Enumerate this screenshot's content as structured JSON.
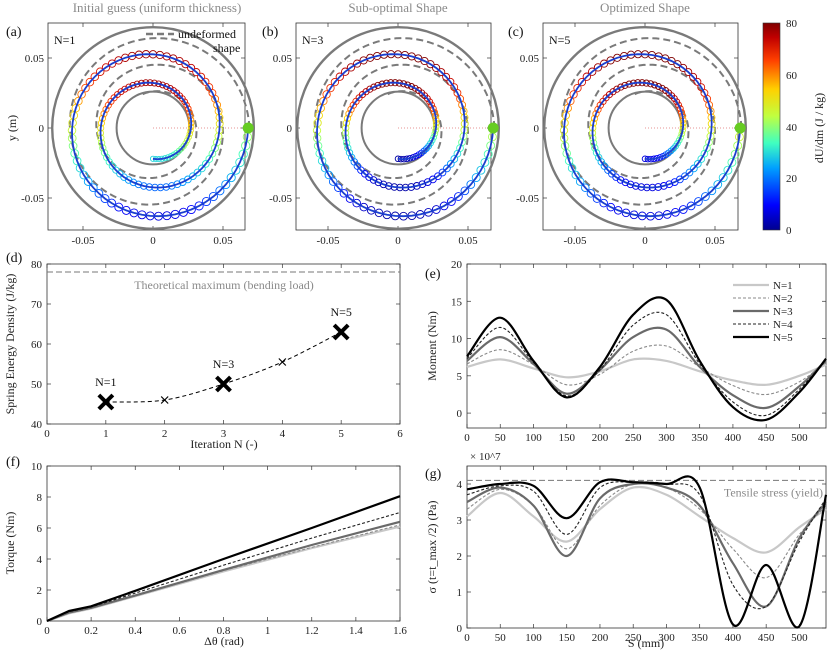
{
  "panel_labels": {
    "a": "(a)",
    "b": "(b)",
    "c": "(c)",
    "d": "(d)",
    "e": "(e)",
    "f": "(f)",
    "g": "(g)"
  },
  "top_titles": {
    "a": "Initial guess (uniform thickness)",
    "b": "Sub-optimal Shape",
    "c": "Optimized Shape"
  },
  "spiral_labels": {
    "a": "N=1",
    "b": "N=3",
    "c": "N=5"
  },
  "legend_spiral": {
    "line1": "undeformed",
    "line2": "shape"
  },
  "spiral_axes": {
    "ylabel": "y (m)",
    "xticks": [
      "-0.05",
      "0",
      "0.05"
    ],
    "yticks": [
      "0.05",
      "0",
      "-0.05"
    ]
  },
  "colorbar": {
    "label": "dU/dm  (J / kg)",
    "ticks": [
      "80",
      "60",
      "40",
      "20",
      "0"
    ],
    "min": 0,
    "max": 80,
    "colors": [
      "#00008f",
      "#0000ff",
      "#00a0ff",
      "#40ffc0",
      "#c0ff40",
      "#ffd000",
      "#ff4000",
      "#c00000",
      "#800000"
    ]
  },
  "colors": {
    "gray": "#7a7a7a",
    "light_gray": "#c8c8c8",
    "dark": "#555555",
    "black": "#000000",
    "green": "#66cc22"
  },
  "chart_data": [
    {
      "id": "d",
      "type": "scatter",
      "xlabel": "Iteration N (-)",
      "ylabel": "Spring Energy Density (J/kg)",
      "xlim": [
        0,
        6
      ],
      "ylim": [
        40,
        80
      ],
      "xticks": [
        "0",
        "1",
        "2",
        "3",
        "4",
        "5",
        "6"
      ],
      "yticks": [
        "80",
        "70",
        "60",
        "50",
        "40"
      ],
      "x": [
        1,
        2,
        3,
        4,
        5
      ],
      "y": [
        45.5,
        46.0,
        50.0,
        55.5,
        63.0
      ],
      "point_labels": [
        "N=1",
        "",
        "N=3",
        "",
        "N=5"
      ],
      "reference": {
        "value": 78,
        "label": "Theoretical maximum (bending load)"
      }
    },
    {
      "id": "e",
      "type": "line",
      "xlabel": "",
      "ylabel": "Moment (Nm)",
      "xlim": [
        0,
        540
      ],
      "ylim": [
        -2,
        20
      ],
      "xticks": [
        "0",
        "50",
        "100",
        "150",
        "200",
        "250",
        "300",
        "350",
        "400",
        "450",
        "500"
      ],
      "yticks": [
        "20",
        "15",
        "10",
        "5",
        "0"
      ],
      "legend": [
        "N=1",
        "N=2",
        "N=3",
        "N=4",
        "N=5"
      ],
      "x": [
        0,
        50,
        100,
        150,
        200,
        250,
        300,
        350,
        400,
        450,
        500,
        540
      ],
      "series": [
        {
          "name": "N=1",
          "values": [
            6.2,
            7.2,
            6.0,
            4.8,
            5.6,
            7.2,
            7.0,
            5.6,
            4.4,
            3.8,
            5.0,
            6.5
          ]
        },
        {
          "name": "N=2",
          "values": [
            6.6,
            8.5,
            6.5,
            3.8,
            5.2,
            8.3,
            9.0,
            6.2,
            3.7,
            2.5,
            4.2,
            6.8
          ]
        },
        {
          "name": "N=3",
          "values": [
            7.0,
            10.2,
            6.6,
            2.6,
            5.8,
            10.2,
            11.2,
            6.2,
            2.4,
            0.7,
            3.6,
            7.1
          ]
        },
        {
          "name": "N=4",
          "values": [
            7.3,
            11.5,
            6.8,
            2.3,
            5.8,
            11.8,
            13.2,
            6.6,
            1.5,
            -0.3,
            3.2,
            7.2
          ]
        },
        {
          "name": "N=5",
          "values": [
            7.6,
            12.8,
            7.0,
            2.1,
            6.2,
            13.2,
            15.2,
            7.0,
            0.8,
            -0.9,
            2.8,
            7.3
          ]
        }
      ]
    },
    {
      "id": "f",
      "type": "line",
      "xlabel": "Δθ  (rad)",
      "ylabel": "Torque (Nm)",
      "xlim": [
        0,
        1.6
      ],
      "ylim": [
        0,
        10
      ],
      "xticks": [
        "0",
        "0.2",
        "0.4",
        "0.6",
        "0.8",
        "1",
        "1.2",
        "1.4",
        "1.6"
      ],
      "yticks": [
        "10",
        "8",
        "6",
        "4",
        "2",
        "0"
      ],
      "x": [
        0,
        0.1,
        0.2,
        0.4,
        0.8,
        1.2,
        1.6
      ],
      "series": [
        {
          "name": "N=1",
          "values": [
            0,
            0.5,
            0.8,
            1.6,
            3.2,
            4.7,
            6.1
          ]
        },
        {
          "name": "N=2",
          "values": [
            0,
            0.52,
            0.82,
            1.62,
            3.25,
            4.75,
            6.2
          ]
        },
        {
          "name": "N=3",
          "values": [
            0,
            0.55,
            0.85,
            1.65,
            3.3,
            4.9,
            6.4
          ]
        },
        {
          "name": "N=4",
          "values": [
            0,
            0.6,
            0.9,
            1.8,
            3.6,
            5.35,
            7.0
          ]
        },
        {
          "name": "N=5",
          "values": [
            0,
            0.65,
            0.95,
            1.95,
            4.0,
            6.0,
            8.05
          ]
        }
      ]
    },
    {
      "id": "g",
      "type": "line",
      "xlabel": "S (mm)",
      "ylabel": "σ (t=t_max /2) (Pa)",
      "exponent": "× 10^7",
      "xlim": [
        0,
        540
      ],
      "ylim": [
        0,
        4.5
      ],
      "xticks": [
        "0",
        "50",
        "100",
        "150",
        "200",
        "250",
        "300",
        "350",
        "400",
        "450",
        "500"
      ],
      "yticks": [
        "4",
        "3",
        "2",
        "1",
        "0"
      ],
      "reference": {
        "value": 4.1,
        "label": "Tensile stress (yield)"
      },
      "x": [
        0,
        50,
        100,
        150,
        200,
        250,
        300,
        350,
        400,
        450,
        500,
        540
      ],
      "series": [
        {
          "name": "N=1",
          "values": [
            3.1,
            3.75,
            3.1,
            2.4,
            3.3,
            3.9,
            3.7,
            3.1,
            2.5,
            2.1,
            2.8,
            3.3
          ]
        },
        {
          "name": "N=2",
          "values": [
            3.3,
            3.85,
            3.4,
            2.2,
            3.4,
            4.0,
            3.9,
            3.3,
            2.2,
            1.4,
            2.6,
            3.4
          ]
        },
        {
          "name": "N=3",
          "values": [
            3.5,
            3.9,
            3.4,
            2.0,
            3.6,
            4.0,
            3.9,
            3.4,
            1.8,
            0.6,
            2.5,
            3.5
          ]
        },
        {
          "name": "N=4",
          "values": [
            3.7,
            3.95,
            3.8,
            2.6,
            3.9,
            4.05,
            4.0,
            3.7,
            1.2,
            0.6,
            2.4,
            3.6
          ]
        },
        {
          "name": "N=5",
          "values": [
            3.85,
            4.0,
            3.95,
            3.05,
            4.05,
            4.05,
            4.0,
            3.9,
            0.1,
            1.75,
            0.05,
            3.7
          ]
        }
      ]
    }
  ]
}
